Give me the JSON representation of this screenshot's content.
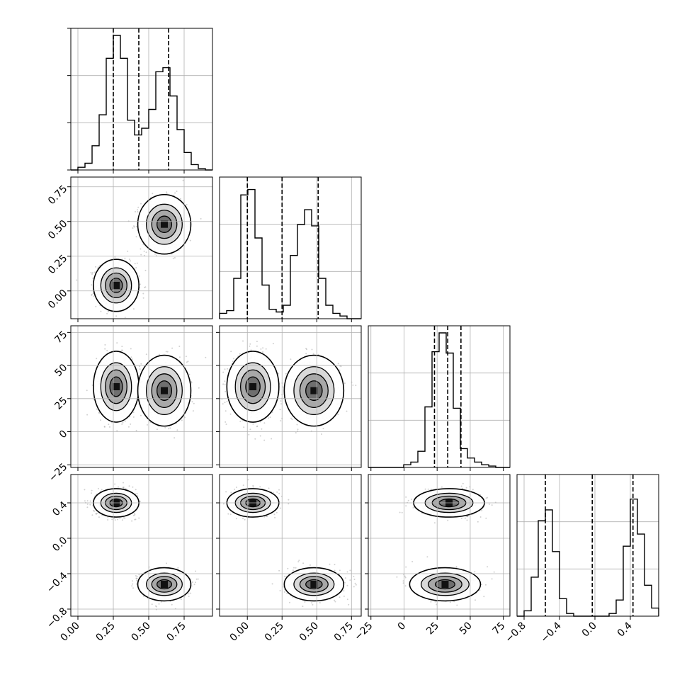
{
  "chart_data": {
    "type": "corner",
    "n_params": 4,
    "grid": true,
    "parameters": [
      {
        "index": 0,
        "range": [
          -0.05,
          0.95
        ],
        "ticks": [
          0.0,
          0.25,
          0.5,
          0.75
        ],
        "tick_labels": [
          "0.00",
          "0.25",
          "0.50",
          "0.75"
        ],
        "quantiles": [
          0.25,
          0.43,
          0.64
        ],
        "modes": [
          {
            "center": 0.27,
            "sd": 0.06,
            "weight": 0.5
          },
          {
            "center": 0.61,
            "sd": 0.07,
            "weight": 0.5
          }
        ]
      },
      {
        "index": 1,
        "range": [
          -0.2,
          0.82
        ],
        "ticks": [
          0.0,
          0.25,
          0.5,
          0.75
        ],
        "tick_labels": [
          "0.00",
          "0.25",
          "0.50",
          "0.75"
        ],
        "quantiles": [
          0.0,
          0.25,
          0.51
        ],
        "modes": [
          {
            "center": 0.04,
            "sd": 0.07,
            "weight": 0.5
          },
          {
            "center": 0.48,
            "sd": 0.08,
            "weight": 0.5
          }
        ]
      },
      {
        "index": 2,
        "range": [
          -27,
          80
        ],
        "ticks": [
          -25,
          0,
          25,
          50,
          75
        ],
        "tick_labels": [
          "−25",
          "0",
          "25",
          "50",
          "75"
        ],
        "quantiles": [
          23,
          33,
          43
        ],
        "modes": [
          {
            "center": 34,
            "sd": 10,
            "weight": 0.5
          },
          {
            "center": 31,
            "sd": 10,
            "weight": 0.5
          }
        ]
      },
      {
        "index": 3,
        "range": [
          -0.88,
          0.72
        ],
        "ticks": [
          -0.8,
          -0.4,
          0.0,
          0.4
        ],
        "tick_labels": [
          "−0.8",
          "−0.4",
          "0.0",
          "0.4"
        ],
        "quantiles": [
          -0.56,
          -0.03,
          0.43
        ],
        "modes": [
          {
            "center": 0.4,
            "sd": 0.06,
            "weight": 0.5
          },
          {
            "center": -0.52,
            "sd": 0.07,
            "weight": 0.5
          }
        ]
      }
    ],
    "clusters": [
      {
        "means": [
          0.27,
          0.04,
          34,
          0.4
        ],
        "sds": [
          0.06,
          0.07,
          10,
          0.06
        ],
        "weight": 0.5
      },
      {
        "means": [
          0.61,
          0.48,
          31,
          -0.52
        ],
        "sds": [
          0.07,
          0.08,
          10,
          0.07
        ],
        "weight": 0.5
      }
    ],
    "histograms": [
      {
        "param": 0,
        "bins": 20,
        "relative_counts": [
          0.0,
          0.02,
          0.05,
          0.18,
          0.41,
          0.83,
          1.0,
          0.83,
          0.37,
          0.26,
          0.31,
          0.45,
          0.73,
          0.76,
          0.55,
          0.3,
          0.13,
          0.04,
          0.01,
          0.0
        ]
      },
      {
        "param": 1,
        "bins": 20,
        "relative_counts": [
          0.04,
          0.06,
          0.3,
          0.92,
          0.96,
          0.6,
          0.25,
          0.07,
          0.05,
          0.1,
          0.47,
          0.7,
          0.81,
          0.69,
          0.3,
          0.1,
          0.04,
          0.02,
          0.0,
          0.0
        ]
      },
      {
        "param": 2,
        "bins": 20,
        "relative_counts": [
          0.0,
          0.0,
          0.0,
          0.0,
          0.0,
          0.02,
          0.04,
          0.12,
          0.45,
          0.86,
          1.0,
          0.85,
          0.44,
          0.14,
          0.07,
          0.04,
          0.02,
          0.01,
          0.0,
          0.0
        ]
      },
      {
        "param": 3,
        "bins": 20,
        "relative_counts": [
          0.0,
          0.04,
          0.29,
          0.71,
          0.79,
          0.48,
          0.13,
          0.02,
          0.0,
          0.0,
          0.0,
          0.0,
          0.0,
          0.02,
          0.12,
          0.52,
          0.87,
          0.61,
          0.23,
          0.06
        ]
      }
    ],
    "density_panels": [
      {
        "x": 0,
        "y": 1
      },
      {
        "x": 0,
        "y": 2
      },
      {
        "x": 1,
        "y": 2
      },
      {
        "x": 0,
        "y": 3
      },
      {
        "x": 1,
        "y": 3
      },
      {
        "x": 2,
        "y": 3
      }
    ],
    "styles": {
      "histogram_line": "#000000",
      "quantile_line": "#000000",
      "contour_line": "#000000",
      "scatter": "#9a9a9a",
      "grid": "#b0b0b0",
      "background": "#ffffff"
    }
  }
}
